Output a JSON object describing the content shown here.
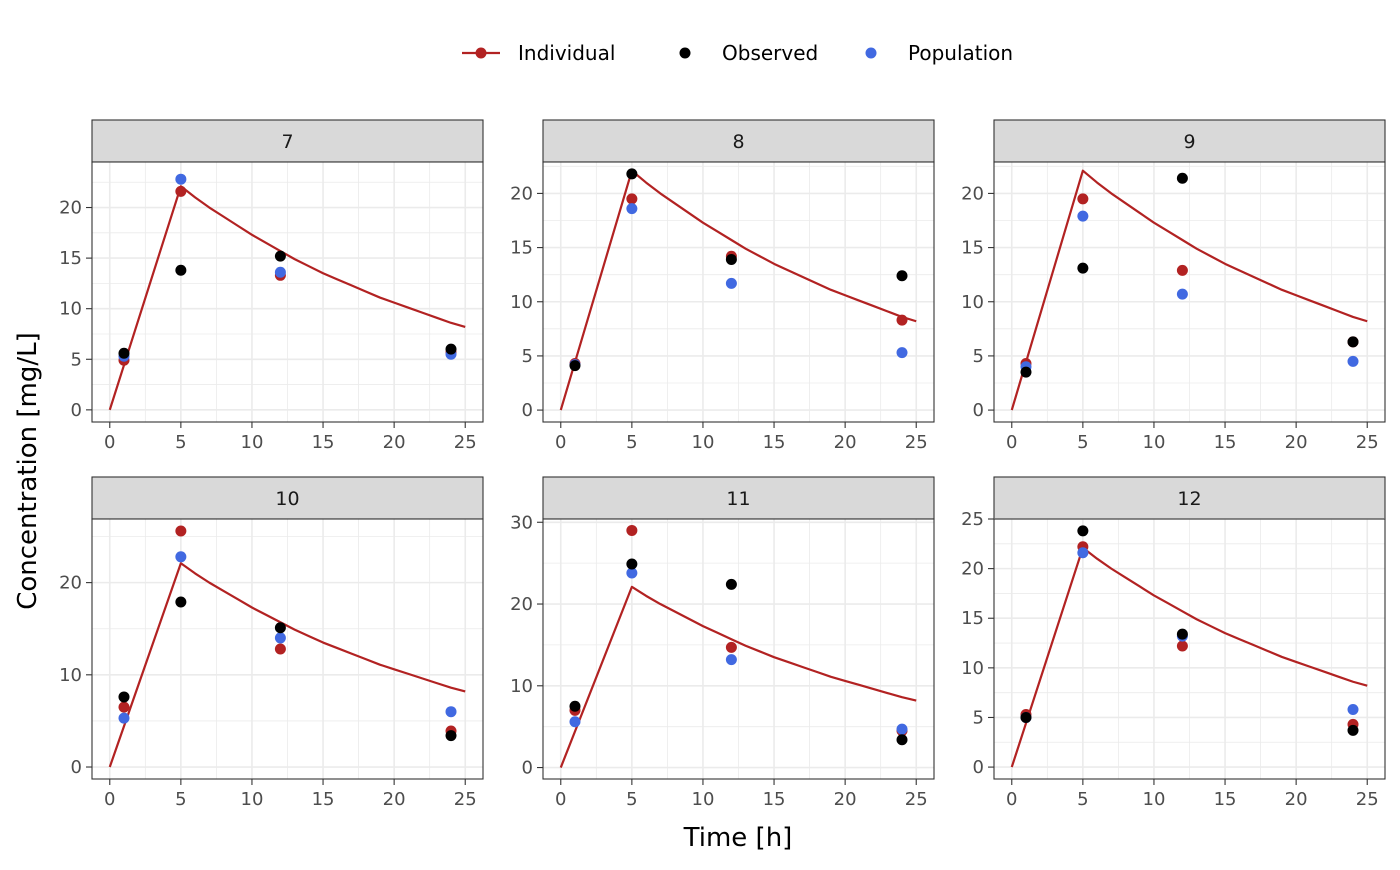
{
  "chart_data": {
    "type": "scatter",
    "xlabel": "Time [h]",
    "ylabel": "Concentration [mg/L]",
    "xlim": [
      -1.25,
      26.25
    ],
    "x_ticks": [
      0,
      5,
      10,
      15,
      20,
      25
    ],
    "grid": true,
    "legend": {
      "position": "top",
      "entries": [
        {
          "label": "Individual",
          "color": "#b22222",
          "glyph": "line-point"
        },
        {
          "label": "Observed",
          "color": "#000000",
          "glyph": "point"
        },
        {
          "label": "Population",
          "color": "#4169e1",
          "glyph": "point"
        }
      ]
    },
    "line_series": {
      "name": "Individual",
      "color": "#b22222",
      "x": [
        0,
        5,
        6,
        7,
        8,
        9,
        10,
        11,
        12,
        13,
        14,
        15,
        16,
        17,
        18,
        19,
        20,
        21,
        22,
        23,
        24,
        25
      ],
      "y": [
        0,
        22.1,
        21.0,
        20.0,
        19.1,
        18.2,
        17.3,
        16.5,
        15.7,
        14.9,
        14.2,
        13.5,
        12.9,
        12.3,
        11.7,
        11.1,
        10.6,
        10.1,
        9.6,
        9.1,
        8.6,
        8.2
      ]
    },
    "panels": [
      {
        "label": "7",
        "ylim": [
          -1.2,
          24.5
        ],
        "y_ticks": [
          0,
          5,
          10,
          15,
          20
        ],
        "series": [
          {
            "name": "Individual",
            "color": "#b22222",
            "x": [
              1,
              5,
              12,
              24
            ],
            "y": [
              4.9,
              21.6,
              13.3,
              5.7
            ]
          },
          {
            "name": "Population",
            "color": "#4169e1",
            "x": [
              1,
              5,
              12,
              24
            ],
            "y": [
              5.3,
              22.8,
              13.6,
              5.5
            ]
          },
          {
            "name": "Observed",
            "color": "#000000",
            "x": [
              1,
              5,
              12,
              24
            ],
            "y": [
              5.6,
              13.8,
              15.2,
              6.0
            ]
          }
        ]
      },
      {
        "label": "8",
        "ylim": [
          -1.1,
          22.9
        ],
        "y_ticks": [
          0,
          5,
          10,
          15,
          20
        ],
        "series": [
          {
            "name": "Individual",
            "color": "#b22222",
            "x": [
              1,
              5,
              12,
              24
            ],
            "y": [
              4.3,
              19.5,
              14.2,
              8.3
            ]
          },
          {
            "name": "Population",
            "color": "#4169e1",
            "x": [
              1,
              5,
              12,
              24
            ],
            "y": [
              4.2,
              18.6,
              11.7,
              5.3
            ]
          },
          {
            "name": "Observed",
            "color": "#000000",
            "x": [
              1,
              5,
              12,
              24
            ],
            "y": [
              4.1,
              21.8,
              13.9,
              12.4
            ]
          }
        ]
      },
      {
        "label": "9",
        "ylim": [
          -1.1,
          22.9
        ],
        "y_ticks": [
          0,
          5,
          10,
          15,
          20
        ],
        "series": [
          {
            "name": "Individual",
            "color": "#b22222",
            "x": [
              1,
              5,
              12,
              24
            ],
            "y": [
              4.3,
              19.5,
              12.9,
              6.3
            ]
          },
          {
            "name": "Population",
            "color": "#4169e1",
            "x": [
              1,
              5,
              12,
              24
            ],
            "y": [
              4.0,
              17.9,
              10.7,
              4.5
            ]
          },
          {
            "name": "Observed",
            "color": "#000000",
            "x": [
              1,
              5,
              12,
              24
            ],
            "y": [
              3.5,
              13.1,
              21.4,
              6.3
            ]
          }
        ]
      },
      {
        "label": "10",
        "ylim": [
          -1.3,
          26.9
        ],
        "y_ticks": [
          0,
          10,
          20
        ],
        "series": [
          {
            "name": "Individual",
            "color": "#b22222",
            "x": [
              1,
              5,
              12,
              24
            ],
            "y": [
              6.5,
              25.6,
              12.8,
              3.9
            ]
          },
          {
            "name": "Population",
            "color": "#4169e1",
            "x": [
              1,
              5,
              12,
              24
            ],
            "y": [
              5.3,
              22.8,
              14.0,
              6.0
            ]
          },
          {
            "name": "Observed",
            "color": "#000000",
            "x": [
              1,
              5,
              12,
              24
            ],
            "y": [
              7.6,
              17.9,
              15.1,
              3.4
            ]
          }
        ]
      },
      {
        "label": "11",
        "ylim": [
          -1.4,
          30.4
        ],
        "y_ticks": [
          0,
          10,
          20,
          30
        ],
        "series": [
          {
            "name": "Individual",
            "color": "#b22222",
            "x": [
              1,
              5,
              12,
              24
            ],
            "y": [
              7.0,
              29.0,
              14.7,
              4.5
            ]
          },
          {
            "name": "Population",
            "color": "#4169e1",
            "x": [
              1,
              5,
              12,
              24
            ],
            "y": [
              5.6,
              23.8,
              13.2,
              4.7
            ]
          },
          {
            "name": "Observed",
            "color": "#000000",
            "x": [
              1,
              5,
              12,
              24
            ],
            "y": [
              7.5,
              24.9,
              22.4,
              3.4
            ]
          }
        ]
      },
      {
        "label": "12",
        "ylim": [
          -1.2,
          25.0
        ],
        "y_ticks": [
          0,
          5,
          10,
          15,
          20,
          25
        ],
        "series": [
          {
            "name": "Individual",
            "color": "#b22222",
            "x": [
              1,
              5,
              12,
              24
            ],
            "y": [
              5.3,
              22.2,
              12.2,
              4.3
            ]
          },
          {
            "name": "Population",
            "color": "#4169e1",
            "x": [
              1,
              5,
              12,
              24
            ],
            "y": [
              5.0,
              21.6,
              13.2,
              5.8
            ]
          },
          {
            "name": "Observed",
            "color": "#000000",
            "x": [
              1,
              5,
              12,
              24
            ],
            "y": [
              5.0,
              23.8,
              13.4,
              3.7
            ]
          }
        ]
      }
    ]
  }
}
